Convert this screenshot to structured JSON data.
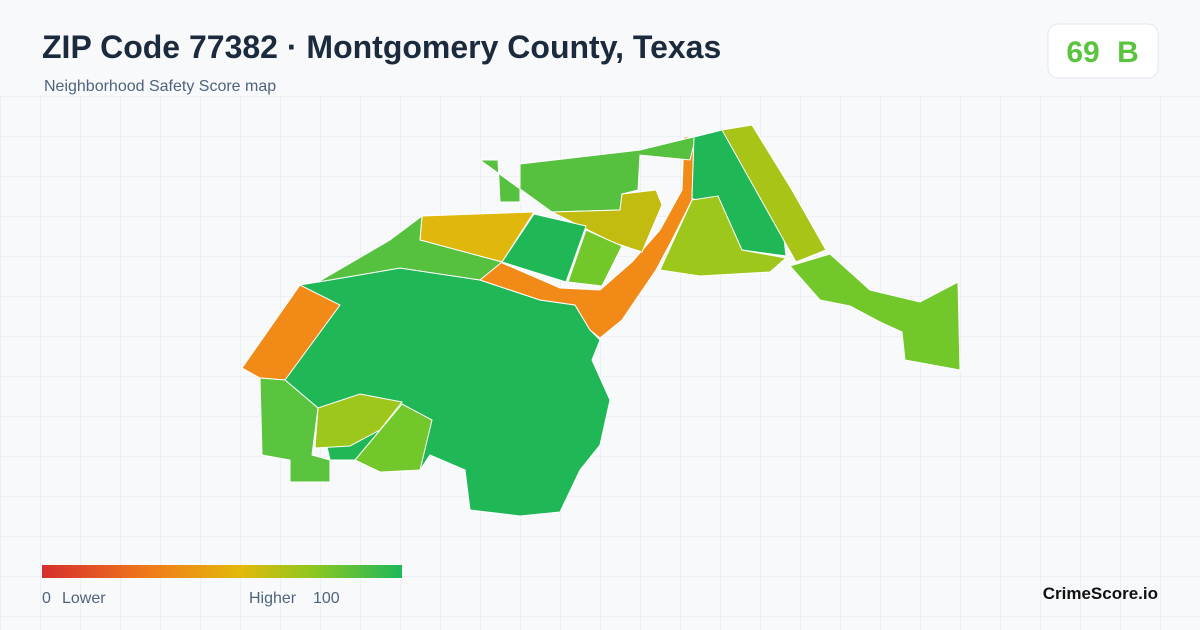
{
  "header": {
    "title": "ZIP Code 77382 · Montgomery County, Texas",
    "subtitle": "Neighborhood Safety Score map"
  },
  "score": {
    "value": 69,
    "grade": "B"
  },
  "legend": {
    "min": 0,
    "min_label": "Lower",
    "max_label": "Higher",
    "max": 100
  },
  "brand": "CrimeScore.io"
}
